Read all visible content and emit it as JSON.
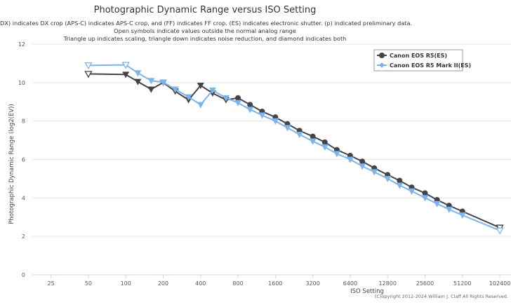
{
  "chart_data": {
    "type": "line",
    "title": "Photographic Dynamic Range versus ISO Setting",
    "subtitle": [
      "(DX) indicates DX crop (APS-C) indicates APS-C crop, and (FF) indicates FF crop. (ES) indicates electronic shutter. (p) indicated preliminary data.",
      "Open symbols indicate values outside the normal analog range",
      "Triangle up indicates scaling, triangle down indicates noise reduction, and diamond indicates both"
    ],
    "xlabel": "ISO Setting",
    "ylabel": "Photographic Dynamic Range (log2(EV))",
    "x_scale": "log2",
    "xlim": [
      17.68,
      126000
    ],
    "ylim": [
      0,
      12
    ],
    "x_ticks": [
      25,
      50,
      100,
      200,
      400,
      800,
      1600,
      3200,
      6400,
      12800,
      25600,
      51200,
      102400
    ],
    "y_ticks": [
      0,
      2,
      4,
      6,
      8,
      10,
      12
    ],
    "grid": true,
    "legend_position": "top-right",
    "credit": "(C)opyright 2012-2024 William J. Claff All Rights Reserved.",
    "series": [
      {
        "name": "Canon EOS R5(ES)",
        "color": "#434348",
        "points": [
          {
            "x": 50,
            "y": 10.45,
            "m": "tri-down-open"
          },
          {
            "x": 100,
            "y": 10.42,
            "m": "tri-down"
          },
          {
            "x": 125,
            "y": 10.05,
            "m": "tri-down"
          },
          {
            "x": 160,
            "y": 9.65,
            "m": "tri-down"
          },
          {
            "x": 200,
            "y": 10.0,
            "m": "tri-down"
          },
          {
            "x": 250,
            "y": 9.55,
            "m": "tri-down"
          },
          {
            "x": 320,
            "y": 9.1,
            "m": "tri-down"
          },
          {
            "x": 400,
            "y": 9.85,
            "m": "tri-down"
          },
          {
            "x": 500,
            "y": 9.45,
            "m": "tri-down"
          },
          {
            "x": 640,
            "y": 9.1,
            "m": "tri-down"
          },
          {
            "x": 800,
            "y": 9.2,
            "m": "circle"
          },
          {
            "x": 1000,
            "y": 8.85,
            "m": "circle"
          },
          {
            "x": 1250,
            "y": 8.5,
            "m": "circle"
          },
          {
            "x": 1600,
            "y": 8.2,
            "m": "circle"
          },
          {
            "x": 2000,
            "y": 7.85,
            "m": "circle"
          },
          {
            "x": 2500,
            "y": 7.5,
            "m": "circle"
          },
          {
            "x": 3200,
            "y": 7.2,
            "m": "circle"
          },
          {
            "x": 4000,
            "y": 6.9,
            "m": "circle"
          },
          {
            "x": 5000,
            "y": 6.5,
            "m": "circle"
          },
          {
            "x": 6400,
            "y": 6.2,
            "m": "circle"
          },
          {
            "x": 8000,
            "y": 5.9,
            "m": "circle"
          },
          {
            "x": 10000,
            "y": 5.55,
            "m": "circle"
          },
          {
            "x": 12800,
            "y": 5.2,
            "m": "circle"
          },
          {
            "x": 16000,
            "y": 4.9,
            "m": "circle"
          },
          {
            "x": 20000,
            "y": 4.55,
            "m": "circle"
          },
          {
            "x": 25600,
            "y": 4.25,
            "m": "circle"
          },
          {
            "x": 32000,
            "y": 3.9,
            "m": "circle"
          },
          {
            "x": 40000,
            "y": 3.6,
            "m": "circle"
          },
          {
            "x": 51200,
            "y": 3.3,
            "m": "circle"
          },
          {
            "x": 102400,
            "y": 2.45,
            "m": "tri-down-open"
          }
        ]
      },
      {
        "name": "Canon EOS R5 Mark II(ES)",
        "color": "#7cb5ec",
        "points": [
          {
            "x": 50,
            "y": 10.9,
            "m": "tri-down-open"
          },
          {
            "x": 100,
            "y": 10.92,
            "m": "tri-down-open"
          },
          {
            "x": 125,
            "y": 10.5,
            "m": "tri-down"
          },
          {
            "x": 160,
            "y": 10.1,
            "m": "tri-down"
          },
          {
            "x": 200,
            "y": 10.02,
            "m": "tri-down"
          },
          {
            "x": 250,
            "y": 9.65,
            "m": "tri-down"
          },
          {
            "x": 320,
            "y": 9.25,
            "m": "tri-down"
          },
          {
            "x": 400,
            "y": 8.85,
            "m": "tri-down"
          },
          {
            "x": 500,
            "y": 9.6,
            "m": "tri-down"
          },
          {
            "x": 640,
            "y": 9.2,
            "m": "tri-down"
          },
          {
            "x": 800,
            "y": 8.95,
            "m": "tri-down"
          },
          {
            "x": 1000,
            "y": 8.6,
            "m": "tri-down"
          },
          {
            "x": 1250,
            "y": 8.3,
            "m": "tri-down"
          },
          {
            "x": 1600,
            "y": 8.0,
            "m": "tri-down"
          },
          {
            "x": 2000,
            "y": 7.65,
            "m": "tri-down"
          },
          {
            "x": 2500,
            "y": 7.3,
            "m": "tri-down"
          },
          {
            "x": 3200,
            "y": 6.95,
            "m": "tri-down"
          },
          {
            "x": 4000,
            "y": 6.65,
            "m": "tri-down"
          },
          {
            "x": 5000,
            "y": 6.3,
            "m": "tri-down"
          },
          {
            "x": 6400,
            "y": 6.0,
            "m": "tri-down"
          },
          {
            "x": 8000,
            "y": 5.65,
            "m": "tri-down"
          },
          {
            "x": 10000,
            "y": 5.35,
            "m": "tri-down"
          },
          {
            "x": 12800,
            "y": 5.0,
            "m": "tri-down"
          },
          {
            "x": 16000,
            "y": 4.65,
            "m": "tri-down"
          },
          {
            "x": 20000,
            "y": 4.35,
            "m": "tri-down"
          },
          {
            "x": 25600,
            "y": 4.0,
            "m": "tri-down"
          },
          {
            "x": 32000,
            "y": 3.7,
            "m": "tri-down"
          },
          {
            "x": 40000,
            "y": 3.4,
            "m": "tri-down"
          },
          {
            "x": 51200,
            "y": 3.1,
            "m": "tri-down"
          },
          {
            "x": 102400,
            "y": 2.3,
            "m": "tri-down-open"
          }
        ]
      }
    ]
  }
}
